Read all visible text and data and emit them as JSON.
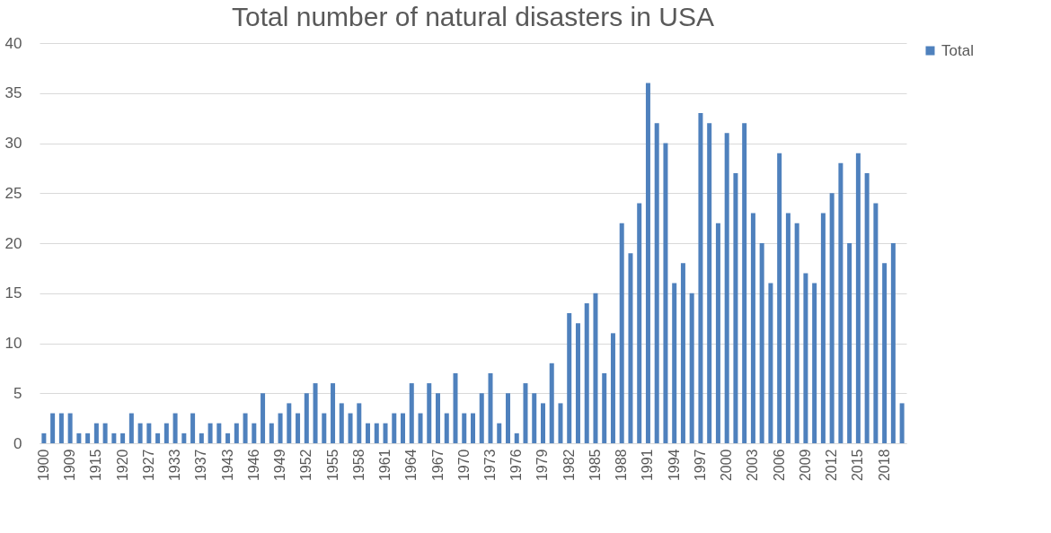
{
  "chart_data": {
    "type": "bar",
    "title": "Total number of natural disasters in USA",
    "categories": [
      "1900",
      null,
      null,
      "1909",
      null,
      null,
      "1915",
      null,
      null,
      "1920",
      null,
      null,
      "1927",
      null,
      null,
      "1933",
      null,
      null,
      "1937",
      null,
      null,
      "1943",
      null,
      null,
      "1946",
      null,
      null,
      "1949",
      null,
      null,
      "1952",
      null,
      null,
      "1955",
      null,
      null,
      "1958",
      null,
      null,
      "1961",
      null,
      null,
      "1964",
      null,
      null,
      "1967",
      null,
      null,
      "1970",
      null,
      null,
      "1973",
      null,
      null,
      "1976",
      null,
      null,
      "1979",
      null,
      null,
      "1982",
      null,
      null,
      "1985",
      null,
      null,
      "1988",
      null,
      null,
      "1991",
      null,
      null,
      "1994",
      null,
      null,
      "1997",
      null,
      null,
      "2000",
      null,
      null,
      "2003",
      null,
      null,
      "2006",
      null,
      null,
      "2009",
      null,
      null,
      "2012",
      null,
      null,
      "2015",
      null,
      null,
      "2018",
      null,
      null
    ],
    "series": [
      {
        "name": "Total",
        "color": "#4f81bd",
        "values": [
          1,
          3,
          3,
          3,
          1,
          1,
          2,
          2,
          1,
          1,
          3,
          2,
          2,
          1,
          2,
          3,
          1,
          3,
          1,
          2,
          2,
          1,
          2,
          3,
          2,
          5,
          2,
          3,
          4,
          3,
          5,
          6,
          3,
          6,
          4,
          3,
          4,
          2,
          2,
          2,
          3,
          3,
          6,
          3,
          6,
          5,
          3,
          7,
          3,
          3,
          5,
          7,
          2,
          5,
          1,
          6,
          5,
          4,
          8,
          4,
          13,
          12,
          14,
          15,
          7,
          11,
          22,
          19,
          24,
          36,
          32,
          30,
          16,
          18,
          15,
          33,
          32,
          22,
          31,
          27,
          32,
          23,
          20,
          16,
          29,
          23,
          22,
          17,
          16,
          23,
          25,
          28,
          20,
          29,
          27,
          24,
          18,
          20,
          4
        ]
      }
    ],
    "ylim": [
      0,
      40
    ],
    "yticks": [
      0,
      5,
      10,
      15,
      20,
      25,
      30,
      35,
      40
    ],
    "grid": "y",
    "legend": "right"
  }
}
